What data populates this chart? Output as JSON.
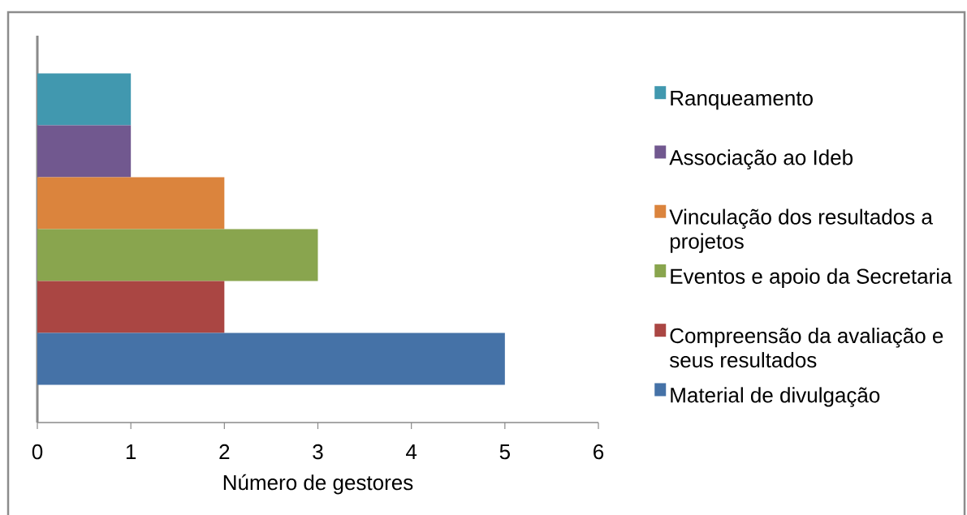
{
  "chart_data": {
    "type": "bar",
    "orientation": "horizontal",
    "categories": [
      null
    ],
    "series": [
      {
        "name": "Ranqueamento",
        "color": "#4198af",
        "values": [
          1
        ]
      },
      {
        "name": "Associação ao Ideb",
        "color": "#71588f",
        "values": [
          1
        ]
      },
      {
        "name": "Vinculação dos resultados a projetos",
        "color": "#db843d",
        "values": [
          2
        ]
      },
      {
        "name": "Eventos e apoio da Secretaria",
        "color": "#89a54e",
        "values": [
          3
        ]
      },
      {
        "name": "Compreensão da avaliação e seus resultados",
        "color": "#aa4643",
        "values": [
          2
        ]
      },
      {
        "name": "Material de divulgação",
        "color": "#4572a7",
        "values": [
          5
        ]
      }
    ],
    "xlabel": "Número de gestores",
    "xlim": [
      0,
      6
    ],
    "xticks": [
      0,
      1,
      2,
      3,
      4,
      5,
      6
    ],
    "legend": "right"
  }
}
